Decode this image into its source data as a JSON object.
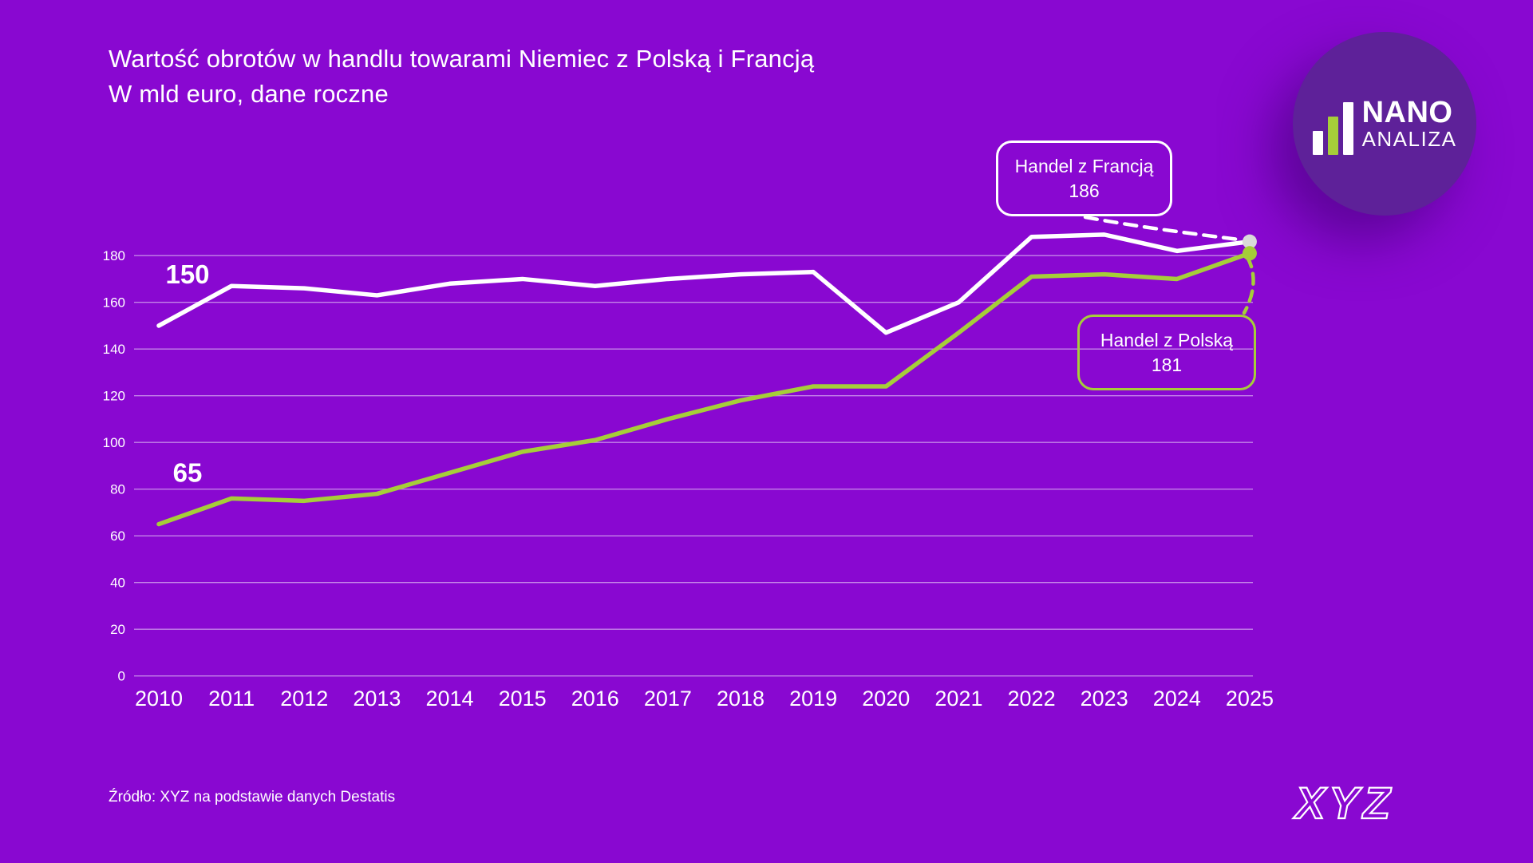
{
  "title": {
    "line1": "Wartość obrotów w handlu towarami Niemiec z Polską i Francją",
    "line2": "W mld euro, dane roczne"
  },
  "logo": {
    "name_top": "NANO",
    "name_bottom": "ANALIZA",
    "circle_color": "#5E2199",
    "icon_bar_colors": [
      "#FFFFFF",
      "#A6CE39",
      "#FFFFFF"
    ]
  },
  "source": "Źródło: XYZ na podstawie danych Destatis",
  "footer_logo": "XYZ",
  "colors": {
    "background": "#8908D1",
    "accent_green": "#A6CE39",
    "text": "#FFFFFF",
    "grid": "rgba(255,255,255,0.5)",
    "france_endpoint_dot": "#DBDBDB"
  },
  "chart_data": {
    "type": "line",
    "x": [
      "2010",
      "2011",
      "2012",
      "2013",
      "2014",
      "2015",
      "2016",
      "2017",
      "2018",
      "2019",
      "2020",
      "2021",
      "2022",
      "2023",
      "2024",
      "2025"
    ],
    "series": [
      {
        "name": "Handel z Francją",
        "color": "#FFFFFF",
        "dot_color": "#DBDBDB",
        "values": [
          150,
          167,
          166,
          163,
          168,
          170,
          167,
          170,
          172,
          173,
          147,
          160,
          188,
          189,
          182,
          186
        ],
        "start_label": "150",
        "callout": {
          "title": "Handel z Francją",
          "value": "186"
        }
      },
      {
        "name": "Handel z Polską",
        "color": "#A6CE39",
        "dot_color": "#A6CE39",
        "values": [
          65,
          76,
          75,
          78,
          87,
          96,
          101,
          110,
          118,
          124,
          124,
          147,
          171,
          172,
          170,
          181
        ],
        "start_label": "65",
        "callout": {
          "title": "Handel z Polską",
          "value": "181"
        }
      }
    ],
    "xlabel": "",
    "ylabel": "",
    "ylim": [
      0,
      180
    ],
    "yticks": [
      0,
      20,
      40,
      60,
      80,
      100,
      120,
      140,
      160,
      180
    ],
    "grid": true,
    "legend_position": "callout-annotations"
  }
}
